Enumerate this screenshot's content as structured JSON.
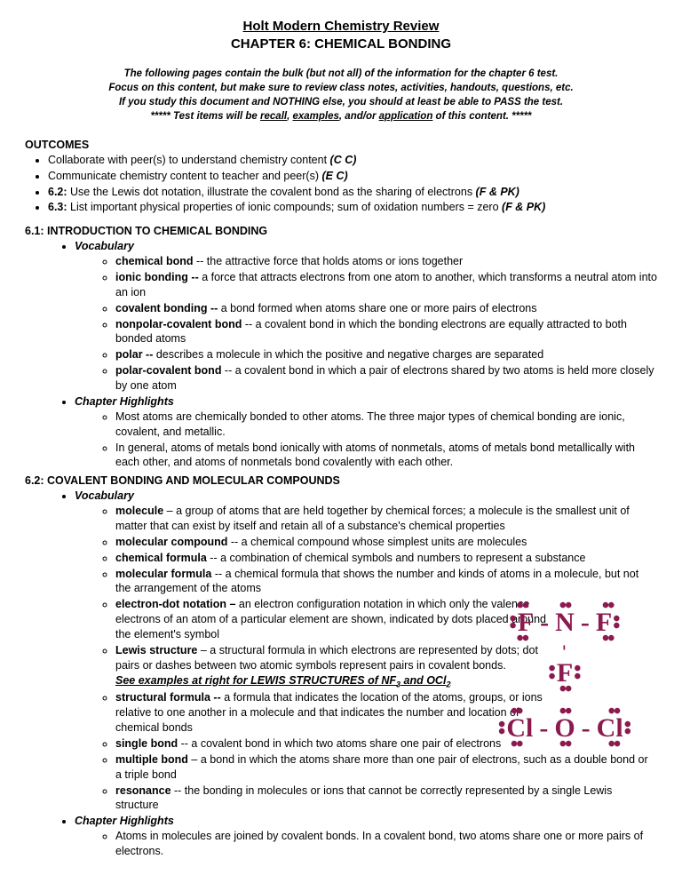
{
  "title": {
    "line1": "Holt Modern Chemistry Review",
    "line2": "CHAPTER 6: CHEMICAL BONDING"
  },
  "intro": {
    "l1": "The following pages contain the bulk (but not all) of the information for the chapter 6 test.",
    "l2": "Focus on this content, but make sure to review class notes, activities, handouts, questions, etc.",
    "l3": "If you study this document and NOTHING else, you should at least be able to PASS the test.",
    "l4_pre": "***** Test items will be ",
    "l4_w1": "recall",
    "l4_mid1": ", ",
    "l4_w2": "examples",
    "l4_mid2": ", and/or ",
    "l4_w3": "application",
    "l4_post": " of this content. *****"
  },
  "outcomes": {
    "header": "OUTCOMES",
    "items": [
      {
        "text": "Collaborate with peer(s) to understand chemistry content ",
        "suffix": "(C C)"
      },
      {
        "text": "Communicate chemistry content to teacher and peer(s) ",
        "suffix": "(E C)"
      }
    ],
    "i3_pre": "6.2:",
    "i3_text": " Use the Lewis dot notation, illustrate the covalent bond as the sharing of electrons  ",
    "i3_suf": "(F & PK)",
    "i4_pre": "6.3:",
    "i4_text": " List important physical properties of ionic compounds; sum of oxidation numbers = zero  ",
    "i4_suf": "(F & PK)"
  },
  "s61": {
    "header": "6.1: INTRODUCTION TO CHEMICAL BONDING",
    "vocab_label": "Vocabulary",
    "vocab": [
      {
        "term": "chemical bond",
        "dash": " -- ",
        "def": "the attractive force that holds atoms or ions together"
      },
      {
        "term": "ionic bonding --",
        "dash": " ",
        "def": "a force that attracts electrons from one atom to another, which transforms a neutral atom into an ion"
      },
      {
        "term": "covalent bonding --",
        "dash": " ",
        "def": "a bond formed when atoms share one or more pairs of electrons"
      },
      {
        "term": "nonpolar-covalent bond",
        "dash": " -- ",
        "def": "a covalent bond in which the bonding electrons are equally attracted to both bonded atoms"
      },
      {
        "term": "polar --",
        "dash": " ",
        "def": "describes a molecule in which the positive and negative charges are separated"
      },
      {
        "term": "polar-covalent bond",
        "dash": " -- ",
        "def": "a covalent bond in which a pair of electrons shared by two atoms is held more closely by one atom"
      }
    ],
    "ch_label": "Chapter Highlights",
    "highlights": [
      "Most atoms are chemically bonded to other atoms. The three major types of chemical bonding are ionic, covalent, and metallic.",
      "In general, atoms of metals bond ionically with atoms of nonmetals, atoms of metals bond metallically with each other, and atoms of nonmetals bond covalently with each other."
    ]
  },
  "s62": {
    "header": "6.2: COVALENT BONDING AND MOLECULAR COMPOUNDS",
    "vocab_label": "Vocabulary",
    "vocab": [
      {
        "term": "molecule",
        "dash": " –  ",
        "def": "a group of atoms that are held together by chemical forces; a molecule is the smallest unit of matter that can exist by itself and retain all of a substance's chemical properties"
      },
      {
        "term": "molecular compound",
        "dash": " -- ",
        "def": "a chemical compound whose simplest units are molecules"
      },
      {
        "term": "chemical formula",
        "dash": " -- ",
        "def": "a combination of chemical symbols and numbers to represent a substance"
      },
      {
        "term": "molecular formula",
        "dash": " -- ",
        "def": "a chemical formula that shows the number and kinds of atoms in a molecule, but not the arrangement of the atoms"
      },
      {
        "term": "electron-dot notation –",
        "dash": " ",
        "def": "an electron configuration notation in which only the valence electrons of an atom of a particular element are shown, indicated by dots placed around the element's symbol"
      },
      {
        "term": "Lewis structure",
        "dash": " – ",
        "def": "a structural formula in which electrons are represented by dots; dot pairs or dashes between two atomic symbols represent pairs in covalent bonds."
      }
    ],
    "see_examples_pre": "See examples at right for LEWIS STRUCTURES of NF",
    "see_examples_sub1": "3",
    "see_examples_mid": " and OCl",
    "see_examples_sub2": "2",
    "vocab2": [
      {
        "term": "structural formula --",
        "dash": " ",
        "def": "a formula that indicates the location of the atoms, groups, or ions relative to one another in a molecule and that indicates the number and location of chemical bonds"
      },
      {
        "term": "single bond",
        "dash": " -- ",
        "def": "a covalent bond in which two atoms share one pair of electrons"
      },
      {
        "term": "multiple bond",
        "dash": " – ",
        "def": "a bond in which the atoms share more than one pair of electrons, such as a double bond or a triple bond"
      },
      {
        "term": "resonance",
        "dash": " -- ",
        "def": "the bonding in molecules or ions that cannot be correctly represented by a single Lewis structure"
      }
    ],
    "ch_label": "Chapter Highlights",
    "highlights": [
      "Atoms in molecules are joined by covalent bonds. In a covalent bond, two atoms share one or more pairs of electrons."
    ]
  },
  "lewis": {
    "color": "#8b1a4f",
    "nf3": {
      "center": "N",
      "outer": "F"
    },
    "ocl2": {
      "center": "O",
      "outer": "Cl"
    }
  }
}
